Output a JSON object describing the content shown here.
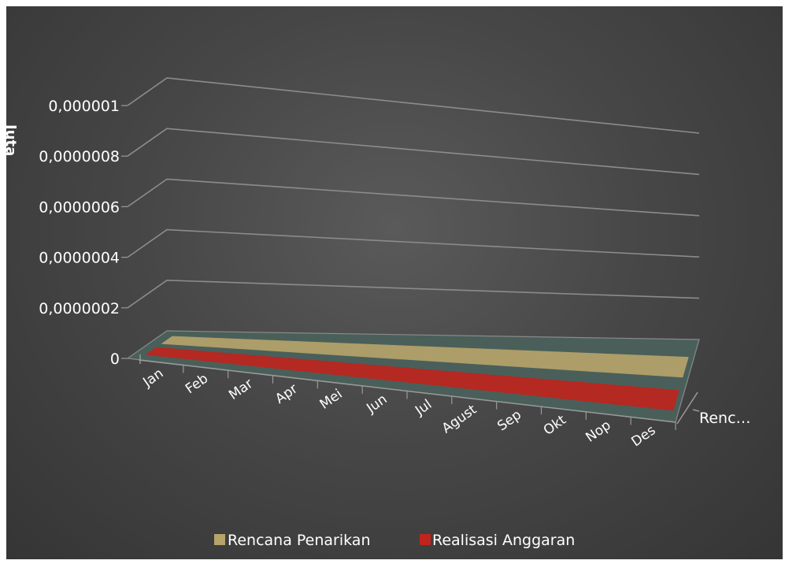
{
  "chart_data": {
    "type": "bar",
    "subtype": "3d-clustered-column",
    "title": "",
    "xlabel": "",
    "ylabel": "Juta",
    "categories": [
      "Jan",
      "Feb",
      "Mar",
      "Apr",
      "Mei",
      "Jun",
      "Jul",
      "Agust",
      "Sep",
      "Okt",
      "Nop",
      "Des"
    ],
    "ylim": [
      0,
      1e-06
    ],
    "yticks": [
      "0",
      "0,0000002",
      "0,0000004",
      "0,0000006",
      "0,0000008",
      "0,000001"
    ],
    "depth_axis_label": "Renc…",
    "series": [
      {
        "name": "Rencana Penarikan",
        "color": "#b8a46a",
        "values": [
          0,
          0,
          0,
          0,
          0,
          0,
          0,
          0,
          0,
          0,
          0,
          0
        ]
      },
      {
        "name": "Realisasi Anggaran",
        "color": "#c0241c",
        "values": [
          0,
          0,
          0,
          0,
          0,
          0,
          0,
          0,
          0,
          0,
          0,
          0
        ]
      }
    ],
    "grid": true,
    "legend_position": "bottom",
    "background": "#464646",
    "gridline_color": "#8c8c8c",
    "floor_color": "#4a5f5a"
  }
}
